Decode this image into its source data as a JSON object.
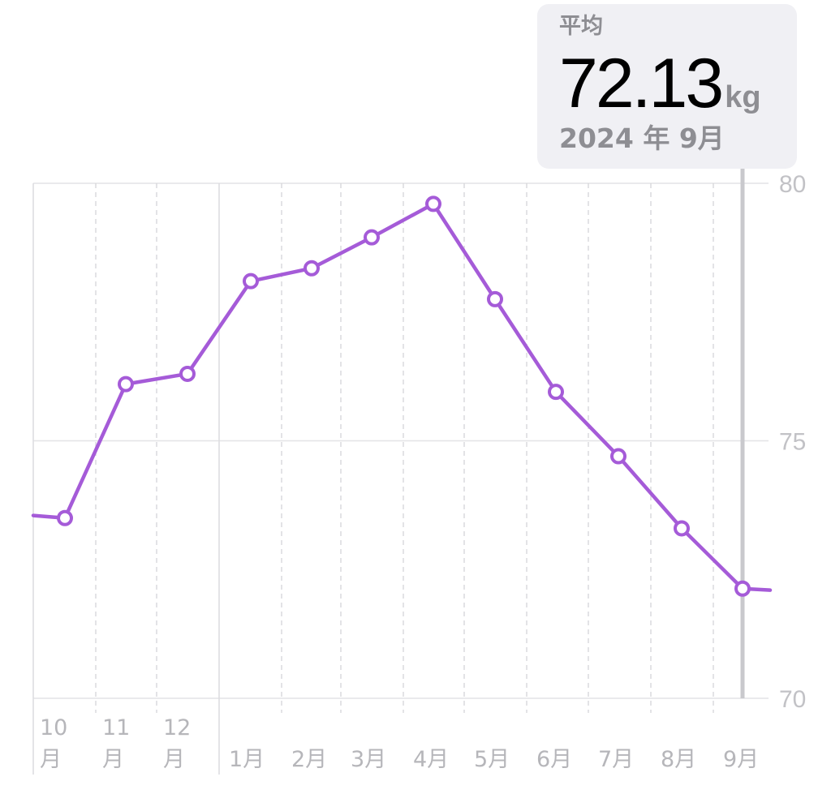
{
  "tooltip": {
    "label": "平均",
    "value": "72.13",
    "unit": "kg",
    "date": "2024 年 9月"
  },
  "chart_data": {
    "type": "line",
    "title": "",
    "xlabel": "",
    "ylabel": "",
    "ylim": [
      70,
      80
    ],
    "yticks": [
      80,
      75,
      70
    ],
    "categories": [
      [
        "10",
        "月"
      ],
      [
        "11",
        "月"
      ],
      [
        "12",
        "月"
      ],
      [
        "1月"
      ],
      [
        "2月"
      ],
      [
        "3月"
      ],
      [
        "4月"
      ],
      [
        "5月"
      ],
      [
        "6月"
      ],
      [
        "7月"
      ],
      [
        "8月"
      ],
      [
        "9月"
      ]
    ],
    "series": [
      {
        "color": "#a55bd8",
        "values": [
          73.5,
          76.1,
          76.3,
          78.1,
          78.35,
          78.95,
          79.6,
          77.75,
          75.95,
          74.7,
          73.3,
          72.13
        ],
        "prev_value": 73.55,
        "next_value": 72.1
      }
    ],
    "highlight_index": 11,
    "grid": true
  }
}
